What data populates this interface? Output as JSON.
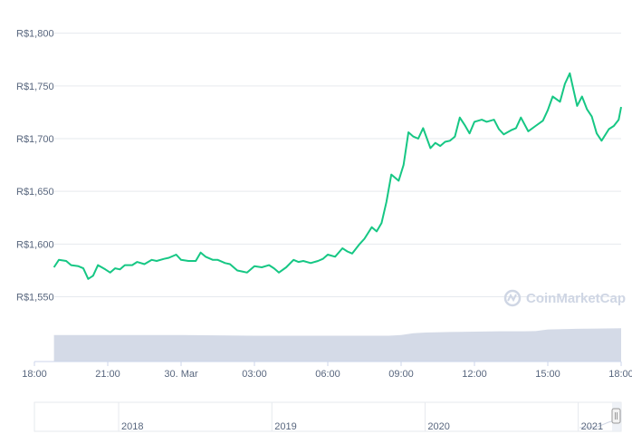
{
  "chart_data": {
    "type": "line",
    "y_axis": {
      "ticks": [
        "R$1,800",
        "R$1,750",
        "R$1,700",
        "R$1,650",
        "R$1,600",
        "R$1,550"
      ],
      "tick_values": [
        1800,
        1750,
        1700,
        1650,
        1600,
        1550
      ],
      "range": [
        1535,
        1810
      ]
    },
    "x_axis": {
      "ticks": [
        "18:00",
        "21:00",
        "30. Mar",
        "03:00",
        "06:00",
        "09:00",
        "12:00",
        "15:00",
        "18:00"
      ],
      "tick_hours": [
        0,
        3,
        6,
        9,
        12,
        15,
        18,
        21,
        24
      ],
      "range_hours": [
        0,
        24
      ]
    },
    "grid": true,
    "series": [
      {
        "color": "#16c784",
        "x": [
          0.8,
          1.0,
          1.3,
          1.5,
          1.8,
          2.0,
          2.2,
          2.4,
          2.6,
          2.9,
          3.1,
          3.3,
          3.5,
          3.7,
          4.0,
          4.2,
          4.5,
          4.8,
          5.0,
          5.3,
          5.5,
          5.8,
          6.0,
          6.3,
          6.6,
          6.8,
          7.0,
          7.3,
          7.5,
          7.8,
          8.0,
          8.3,
          8.5,
          8.7,
          9.0,
          9.3,
          9.6,
          9.8,
          10.0,
          10.3,
          10.6,
          10.8,
          11.0,
          11.3,
          11.6,
          11.8,
          12.0,
          12.3,
          12.6,
          12.8,
          13.0,
          13.3,
          13.5,
          13.8,
          14.0,
          14.2,
          14.4,
          14.6,
          14.9,
          15.1,
          15.3,
          15.5,
          15.7,
          15.9,
          16.2,
          16.4,
          16.6,
          16.8,
          17.0,
          17.2,
          17.4,
          17.6,
          17.8,
          18.0,
          18.3,
          18.5,
          18.8,
          19.0,
          19.2,
          19.5,
          19.7,
          19.9,
          20.2,
          20.5,
          20.8,
          21.0,
          21.2,
          21.5,
          21.7,
          21.9,
          22.2,
          22.4,
          22.6,
          22.8,
          23.0,
          23.2,
          23.5,
          23.7,
          23.9,
          24.0
        ],
        "y": [
          1578,
          1585,
          1584,
          1580,
          1579,
          1577,
          1567,
          1570,
          1580,
          1576,
          1573,
          1577,
          1576,
          1580,
          1580,
          1583,
          1581,
          1585,
          1584,
          1586,
          1587,
          1590,
          1585,
          1584,
          1584,
          1592,
          1588,
          1585,
          1585,
          1582,
          1581,
          1575,
          1574,
          1573,
          1579,
          1578,
          1580,
          1577,
          1573,
          1578,
          1585,
          1583,
          1584,
          1582,
          1584,
          1586,
          1590,
          1588,
          1596,
          1593,
          1591,
          1600,
          1605,
          1616,
          1612,
          1620,
          1640,
          1666,
          1660,
          1675,
          1706,
          1702,
          1700,
          1710,
          1691,
          1696,
          1693,
          1697,
          1698,
          1702,
          1720,
          1713,
          1705,
          1716,
          1718,
          1716,
          1718,
          1709,
          1704,
          1708,
          1710,
          1720,
          1707,
          1712,
          1717,
          1727,
          1740,
          1735,
          1752,
          1762,
          1731,
          1740,
          1728,
          1721,
          1705,
          1698,
          1709,
          1712,
          1718,
          1730
        ]
      }
    ],
    "volume": {
      "color": "#cfd6e4",
      "x": [
        0.8,
        3.0,
        6.0,
        9.0,
        12.0,
        14.0,
        14.5,
        15.0,
        15.5,
        16.0,
        17.0,
        18.0,
        19.0,
        20.0,
        20.5,
        21.0,
        22.0,
        23.0,
        24.0
      ],
      "level": [
        0.86,
        0.86,
        0.86,
        0.84,
        0.84,
        0.84,
        0.84,
        0.86,
        0.92,
        0.94,
        0.96,
        0.97,
        0.98,
        0.98,
        0.99,
        1.04,
        1.06,
        1.07,
        1.08
      ]
    },
    "navigator": {
      "labels": [
        "2018",
        "2019",
        "2020",
        "2021"
      ],
      "label_years": [
        2018,
        2019,
        2020,
        2021
      ],
      "range_years": [
        2017.45,
        2021.28
      ]
    },
    "watermark": "CoinMarketCap"
  }
}
